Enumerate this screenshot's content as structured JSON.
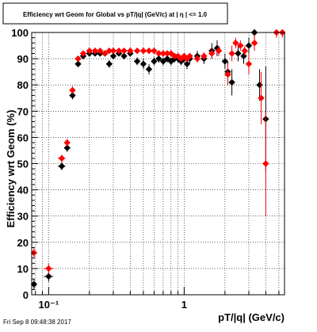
{
  "footer_text": "Fri Sep  8 09:48:38 2017",
  "chart_data": {
    "type": "scatter",
    "title": "Efficiency wrt Geom for Global vs pT/|q| (GeV/c) at | η | <= 1.0",
    "xlabel": "pT/|q| (GeV/c)",
    "ylabel": "Efficiency wrt Geom (%)",
    "xscale": "log",
    "xlim": [
      0.075,
      5.5
    ],
    "ylim": [
      0,
      100
    ],
    "x_tick_labels": [
      "10⁻¹",
      "1"
    ],
    "y_tick_labels": [
      "0",
      "10",
      "20",
      "30",
      "40",
      "50",
      "60",
      "70",
      "80",
      "90",
      "100"
    ],
    "grid": true,
    "legend": "none",
    "colors": {
      "series_0": "#000000",
      "series_1": "#ff0000"
    },
    "series": [
      {
        "marker": "diamond",
        "color": "#000000",
        "points": [
          [
            0.078,
            4,
            0,
            2
          ],
          [
            0.1,
            7,
            0.008,
            2
          ],
          [
            0.125,
            49,
            0.008,
            1.5
          ],
          [
            0.137,
            56,
            0.006,
            1.5
          ],
          [
            0.15,
            76,
            0.006,
            1.5
          ],
          [
            0.165,
            88,
            0.006,
            1.2
          ],
          [
            0.18,
            91,
            0.005,
            1
          ],
          [
            0.2,
            92,
            0.005,
            1
          ],
          [
            0.22,
            92,
            0.005,
            1
          ],
          [
            0.24,
            92,
            0.005,
            1
          ],
          [
            0.26,
            92,
            0.005,
            1
          ],
          [
            0.28,
            88,
            0.005,
            1.5
          ],
          [
            0.3,
            91,
            0.005,
            1
          ],
          [
            0.33,
            92,
            0.005,
            1
          ],
          [
            0.36,
            91,
            0.005,
            1
          ],
          [
            0.4,
            92,
            0.005,
            1
          ],
          [
            0.45,
            89,
            0.005,
            1.5
          ],
          [
            0.5,
            88,
            0.005,
            2
          ],
          [
            0.55,
            86,
            0.005,
            2
          ],
          [
            0.6,
            89,
            0.005,
            1.5
          ],
          [
            0.65,
            90,
            0.005,
            1.5
          ],
          [
            0.7,
            89,
            0.005,
            1.5
          ],
          [
            0.75,
            90,
            0.005,
            1.5
          ],
          [
            0.8,
            89,
            0.005,
            1.5
          ],
          [
            0.85,
            90,
            0.005,
            1.5
          ],
          [
            0.9,
            90,
            0.005,
            1.5
          ],
          [
            0.95,
            89,
            0.005,
            1.5
          ],
          [
            1.0,
            90,
            0.005,
            1.5
          ],
          [
            1.05,
            88,
            0.005,
            2
          ],
          [
            1.1,
            90,
            0.005,
            2
          ],
          [
            1.25,
            91,
            0.03,
            2
          ],
          [
            1.4,
            90,
            0.03,
            2
          ],
          [
            1.6,
            93,
            0.03,
            3
          ],
          [
            1.75,
            94,
            0.03,
            3
          ],
          [
            2.0,
            89,
            0.05,
            3
          ],
          [
            2.1,
            85,
            0.05,
            4
          ],
          [
            2.25,
            81,
            0.05,
            5
          ],
          [
            2.5,
            92,
            0.05,
            3
          ],
          [
            2.75,
            91,
            0.1,
            3
          ],
          [
            3.0,
            95,
            0.1,
            3
          ],
          [
            3.3,
            100,
            0.1,
            3
          ],
          [
            3.6,
            80,
            0.1,
            6
          ],
          [
            4.0,
            67,
            0.1,
            20
          ]
        ]
      },
      {
        "marker": "diamond",
        "color": "#ff0000",
        "points": [
          [
            0.078,
            16,
            0,
            2
          ],
          [
            0.1,
            10,
            0.008,
            2
          ],
          [
            0.125,
            52,
            0.008,
            1.5
          ],
          [
            0.137,
            58,
            0.006,
            1.5
          ],
          [
            0.15,
            78,
            0.006,
            1.5
          ],
          [
            0.165,
            90,
            0.006,
            1
          ],
          [
            0.18,
            92,
            0.005,
            1
          ],
          [
            0.2,
            93,
            0.005,
            1
          ],
          [
            0.22,
            93,
            0.005,
            1
          ],
          [
            0.24,
            93,
            0.005,
            1
          ],
          [
            0.26,
            92,
            0.005,
            1
          ],
          [
            0.28,
            93,
            0.005,
            1
          ],
          [
            0.3,
            93,
            0.005,
            1
          ],
          [
            0.33,
            93,
            0.005,
            1
          ],
          [
            0.36,
            93,
            0.005,
            1
          ],
          [
            0.4,
            93,
            0.005,
            1
          ],
          [
            0.45,
            93,
            0.005,
            1
          ],
          [
            0.5,
            93,
            0.005,
            1
          ],
          [
            0.55,
            93,
            0.005,
            1
          ],
          [
            0.6,
            93,
            0.005,
            1
          ],
          [
            0.65,
            92,
            0.005,
            1
          ],
          [
            0.7,
            92,
            0.005,
            1
          ],
          [
            0.75,
            92,
            0.005,
            1
          ],
          [
            0.8,
            92,
            0.005,
            1
          ],
          [
            0.85,
            91,
            0.005,
            1
          ],
          [
            0.9,
            91,
            0.005,
            1
          ],
          [
            0.95,
            90,
            0.005,
            1
          ],
          [
            1.0,
            91,
            0.005,
            1
          ],
          [
            1.05,
            90,
            0.005,
            1
          ],
          [
            1.1,
            91,
            0.005,
            1
          ],
          [
            1.25,
            90,
            0.03,
            1.5
          ],
          [
            1.4,
            91,
            0.03,
            1.5
          ],
          [
            1.6,
            92,
            0.03,
            2
          ],
          [
            1.8,
            93,
            0.03,
            2
          ],
          [
            2.1,
            84,
            0.05,
            4
          ],
          [
            2.25,
            92,
            0.05,
            3
          ],
          [
            2.4,
            96,
            0.05,
            2
          ],
          [
            2.6,
            95,
            0.05,
            2
          ],
          [
            2.8,
            93,
            0.05,
            2
          ],
          [
            3.0,
            88,
            0.1,
            4
          ],
          [
            3.3,
            96,
            0.1,
            3
          ],
          [
            3.7,
            75,
            0.1,
            10
          ],
          [
            4.0,
            50,
            0.1,
            20
          ],
          [
            4.8,
            100,
            0.2,
            2
          ],
          [
            5.3,
            100,
            0.2,
            2
          ]
        ]
      }
    ]
  }
}
